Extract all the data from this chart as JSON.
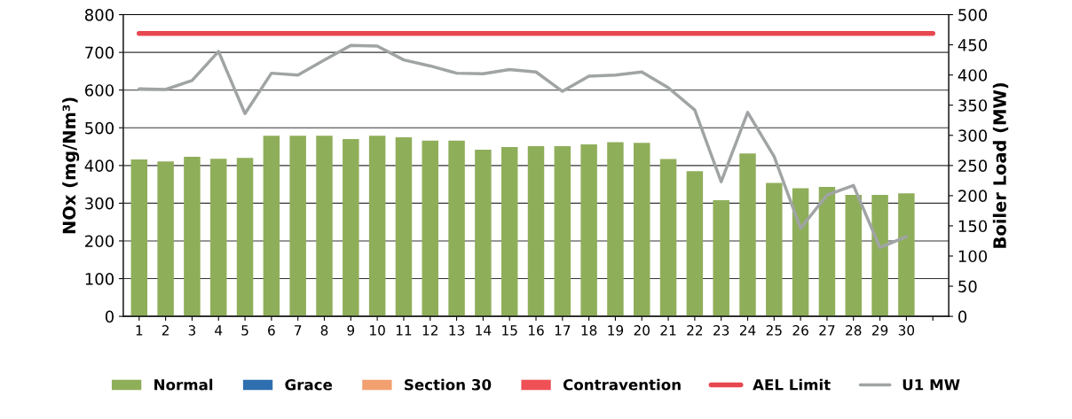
{
  "chart_data": {
    "type": "bar",
    "stacked": true,
    "categories": [
      "1",
      "2",
      "3",
      "4",
      "5",
      "6",
      "7",
      "8",
      "9",
      "10",
      "11",
      "12",
      "13",
      "14",
      "15",
      "16",
      "17",
      "18",
      "19",
      "20",
      "21",
      "22",
      "23",
      "24",
      "25",
      "26",
      "27",
      "28",
      "29",
      "30",
      null
    ],
    "series": [
      {
        "name": "Normal",
        "color": "#8fae5a",
        "values": [
          416,
          411,
          423,
          418,
          420,
          479,
          479,
          479,
          470,
          479,
          475,
          466,
          466,
          442,
          449,
          451,
          451,
          456,
          462,
          460,
          417,
          385,
          308,
          432,
          354,
          340,
          343,
          322,
          322,
          326,
          null
        ]
      },
      {
        "name": "Grace",
        "color": "#2f6fb0",
        "values": [
          0,
          0,
          0,
          0,
          0,
          0,
          0,
          0,
          0,
          0,
          0,
          0,
          0,
          0,
          0,
          0,
          0,
          0,
          0,
          0,
          0,
          0,
          0,
          0,
          0,
          0,
          0,
          0,
          0,
          0,
          null
        ]
      },
      {
        "name": "Section 30",
        "color": "#f2a070",
        "values": [
          0,
          0,
          0,
          0,
          0,
          0,
          0,
          0,
          0,
          0,
          0,
          0,
          0,
          0,
          0,
          0,
          0,
          0,
          0,
          0,
          0,
          0,
          0,
          0,
          0,
          0,
          0,
          0,
          0,
          0,
          null
        ]
      },
      {
        "name": "Contravention",
        "color": "#ee5055",
        "values": [
          0,
          0,
          0,
          0,
          0,
          0,
          0,
          0,
          0,
          0,
          0,
          0,
          0,
          0,
          0,
          0,
          0,
          0,
          0,
          0,
          0,
          0,
          0,
          0,
          0,
          0,
          0,
          0,
          0,
          0,
          null
        ]
      },
      {
        "name": "AEL Limit",
        "type": "line",
        "color": "#e8474f",
        "values": [
          750,
          750,
          750,
          750,
          750,
          750,
          750,
          750,
          750,
          750,
          750,
          750,
          750,
          750,
          750,
          750,
          750,
          750,
          750,
          750,
          750,
          750,
          750,
          750,
          750,
          750,
          750,
          750,
          750,
          750,
          750
        ]
      },
      {
        "name": "U1 MW",
        "type": "line",
        "axis": "y2",
        "color": "#a0a4a4",
        "values": [
          377,
          376,
          391,
          439,
          336,
          403,
          400,
          425,
          449,
          448,
          425,
          415,
          403,
          402,
          409,
          405,
          373,
          398,
          400,
          405,
          379,
          342,
          223,
          338,
          265,
          146,
          201,
          217,
          114,
          132,
          null
        ]
      }
    ],
    "ylabel": "NOx (mg/Nm³)",
    "y2label": "Boiler Load (MW)",
    "ylim": [
      0,
      800
    ],
    "yticks": [
      0,
      100,
      200,
      300,
      400,
      500,
      600,
      700,
      800
    ],
    "y2lim": [
      0,
      500
    ],
    "y2ticks": [
      0,
      50,
      100,
      150,
      200,
      250,
      300,
      350,
      400,
      450,
      500
    ],
    "grid": "y",
    "legend": "bottom"
  }
}
